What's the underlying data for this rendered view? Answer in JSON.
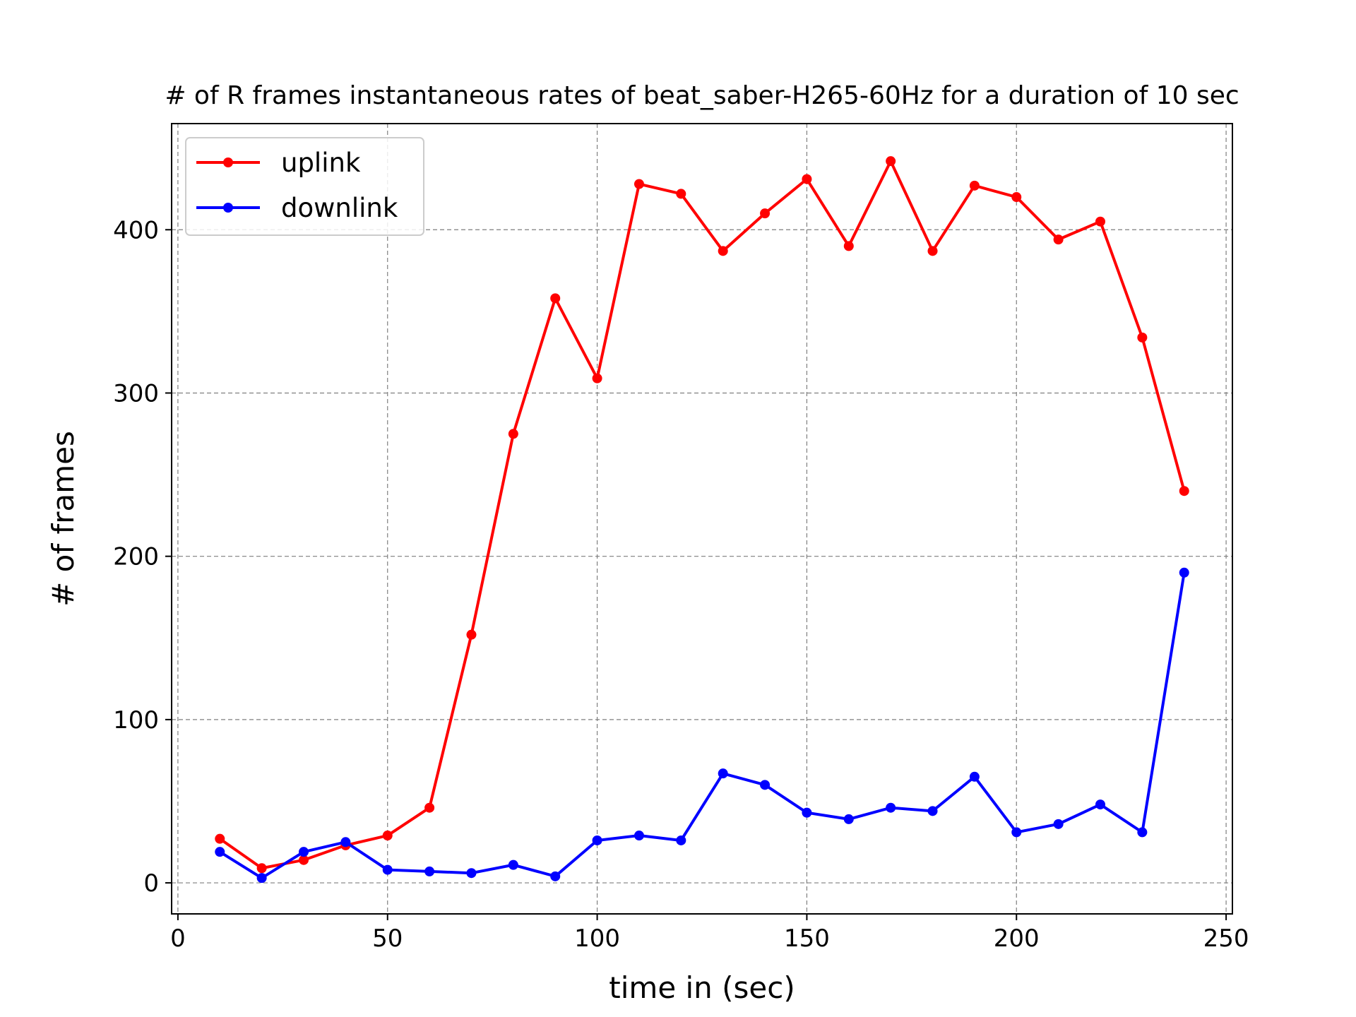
{
  "chart_data": {
    "type": "line",
    "title": "# of R frames instantaneous rates of beat_saber-H265-60Hz for a duration of 10 sec",
    "xlabel": "time in (sec)",
    "ylabel": "# of frames",
    "xlim": [
      -1.5,
      251.5
    ],
    "ylim": [
      -19,
      465
    ],
    "xticks": [
      0,
      50,
      100,
      150,
      200,
      250
    ],
    "yticks": [
      0,
      100,
      200,
      300,
      400
    ],
    "grid": true,
    "legend": "upper left",
    "x": [
      10,
      20,
      30,
      40,
      50,
      60,
      70,
      80,
      90,
      100,
      110,
      120,
      130,
      140,
      150,
      160,
      170,
      180,
      190,
      200,
      210,
      220,
      230,
      240
    ],
    "series": [
      {
        "name": "uplink",
        "color": "#ff0000",
        "values": [
          27,
          9,
          14,
          23,
          29,
          46,
          152,
          275,
          358,
          309,
          428,
          422,
          387,
          410,
          431,
          390,
          442,
          387,
          427,
          420,
          394,
          405,
          334,
          240
        ]
      },
      {
        "name": "downlink",
        "color": "#0000ff",
        "values": [
          19,
          3,
          19,
          25,
          8,
          7,
          6,
          11,
          4,
          26,
          29,
          26,
          67,
          60,
          43,
          39,
          46,
          44,
          65,
          31,
          36,
          48,
          31,
          190
        ]
      }
    ]
  }
}
